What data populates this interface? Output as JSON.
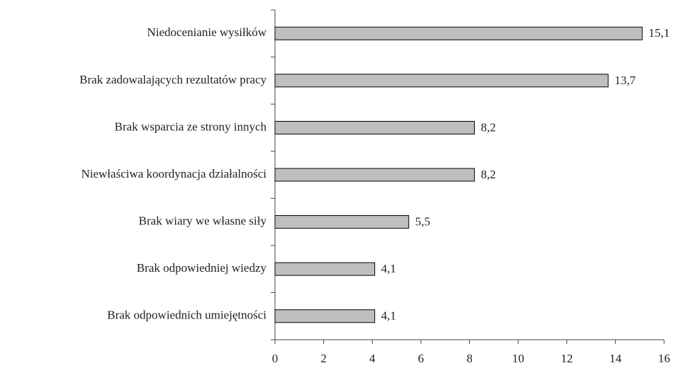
{
  "chart_data": {
    "type": "bar",
    "orientation": "horizontal",
    "categories": [
      "Niedocenianie wysiłków",
      "Brak zadowalających rezultatów pracy",
      "Brak wsparcia ze strony innych",
      "Niewłaściwa koordynacja działalności",
      "Brak wiary we własne siły",
      "Brak odpowiedniej wiedzy",
      "Brak odpowiednich umiejętności"
    ],
    "values": [
      15.1,
      13.7,
      8.2,
      8.2,
      5.5,
      4.1,
      4.1
    ],
    "value_labels": [
      "15,1",
      "13,7",
      "8,2",
      "8,2",
      "5,5",
      "4,1",
      "4,1"
    ],
    "color": "#bfbfbf",
    "xlim": [
      0,
      16
    ],
    "xticks": [
      0,
      2,
      4,
      6,
      8,
      10,
      12,
      14,
      16
    ],
    "grid": false
  }
}
